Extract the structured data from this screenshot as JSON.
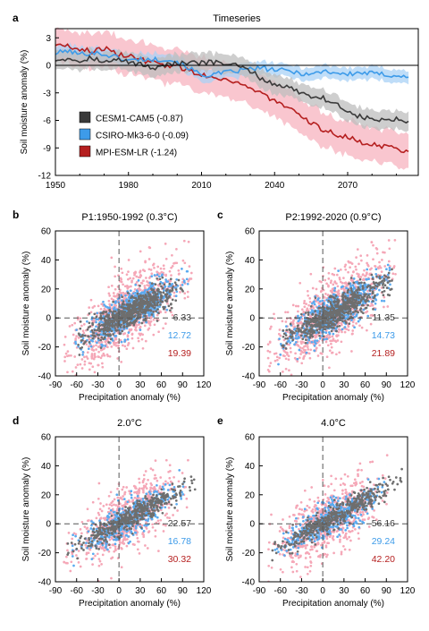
{
  "colors": {
    "cesm": "#3a3a3a",
    "cesm_band": "#bdbdbd",
    "csiro": "#3d9be9",
    "csiro_band": "#a9d1f5",
    "mpi": "#b51f1f",
    "mpi_band": "#f7b3bf",
    "scatter_gray": "#6e6e6e",
    "scatter_blue": "#5aaaf0",
    "scatter_pink": "#f5a7b7"
  },
  "chart_data": [
    {
      "panel": "a",
      "type": "line",
      "title": "Timeseries",
      "xlabel": "",
      "ylabel": "Soil moisture anomaly (%)",
      "xlim": [
        1950,
        2099
      ],
      "ylim": [
        -12,
        4
      ],
      "xticks": [
        "1950",
        "1980",
        "2010",
        "2040",
        "2070"
      ],
      "yticks": [
        "3",
        "0",
        "-3",
        "-6",
        "-9",
        "-12"
      ],
      "grid": false,
      "legend_position": "bottom-left",
      "series": [
        {
          "name": "CESM1-CAM5 (-0.87)",
          "color_key": "cesm",
          "x": [
            1950,
            1955,
            1960,
            1965,
            1970,
            1975,
            1980,
            1985,
            1990,
            1995,
            2000,
            2005,
            2010,
            2015,
            2020,
            2025,
            2030,
            2035,
            2040,
            2045,
            2050,
            2055,
            2060,
            2065,
            2070,
            2075,
            2080,
            2085,
            2090,
            2095
          ],
          "y": [
            0.6,
            0.8,
            0.5,
            0.9,
            0.3,
            0.6,
            0.4,
            0.1,
            -0.3,
            0.1,
            0.2,
            0.2,
            0.3,
            0.3,
            0.2,
            -0.1,
            -0.6,
            -1.5,
            -2.1,
            -2.3,
            -2.9,
            -3.3,
            -3.6,
            -4.2,
            -5.0,
            -5.6,
            -5.9,
            -6.0,
            -5.9,
            -6.1
          ],
          "spread": 1.0
        },
        {
          "name": "CSIRO-Mk3-6-0 (-0.09)",
          "color_key": "csiro",
          "x": [
            1950,
            1955,
            1960,
            1965,
            1970,
            1975,
            1980,
            1985,
            1990,
            1995,
            2000,
            2005,
            2010,
            2015,
            2020,
            2025,
            2030,
            2035,
            2040,
            2045,
            2050,
            2055,
            2060,
            2065,
            2070,
            2075,
            2080,
            2085,
            2090,
            2095
          ],
          "y": [
            1.3,
            1.6,
            1.2,
            1.4,
            1.2,
            0.9,
            0.5,
            0.7,
            0.6,
            0.7,
            0.4,
            -0.3,
            -1.1,
            -1.0,
            -0.8,
            -0.6,
            -0.4,
            -0.3,
            -0.5,
            -0.6,
            -0.8,
            -1.0,
            -0.6,
            -0.8,
            -1.0,
            -0.8,
            -0.9,
            -1.0,
            -1.1,
            -1.3
          ],
          "spread": 0.7
        },
        {
          "name": "MPI-ESM-LR (-1.24)",
          "color_key": "mpi",
          "x": [
            1950,
            1955,
            1960,
            1965,
            1970,
            1975,
            1980,
            1985,
            1990,
            1995,
            2000,
            2005,
            2010,
            2015,
            2020,
            2025,
            2030,
            2035,
            2040,
            2045,
            2050,
            2055,
            2060,
            2065,
            2070,
            2075,
            2080,
            2085,
            2090,
            2095
          ],
          "y": [
            2.3,
            2.1,
            1.8,
            1.5,
            1.9,
            1.2,
            1.1,
            0.6,
            0.3,
            0.0,
            -0.1,
            -0.6,
            -1.0,
            -1.3,
            -1.5,
            -1.9,
            -2.5,
            -3.1,
            -3.9,
            -4.6,
            -5.5,
            -6.3,
            -7.0,
            -7.5,
            -7.8,
            -8.4,
            -8.6,
            -8.8,
            -9.1,
            -9.4
          ],
          "spread": 1.9
        }
      ]
    },
    {
      "panel": "b",
      "type": "scatter",
      "title": "P1:1950-1992 (0.3°C)",
      "xlabel": "Precipitation anomaly (%)",
      "ylabel": "Soil moisture anomaly (%)",
      "xlim": [
        -90,
        120
      ],
      "ylim": [
        -40,
        60
      ],
      "xticks": [
        "-90",
        "-60",
        "-30",
        "0",
        "30",
        "60",
        "90",
        "120"
      ],
      "yticks": [
        "60",
        "40",
        "20",
        "0",
        "-20",
        "-40"
      ],
      "series": [
        {
          "color_key": "scatter_pink",
          "slope": 0.32,
          "intercept": 0,
          "x_range": [
            -75,
            100
          ],
          "spread": 12,
          "count": 900
        },
        {
          "color_key": "scatter_blue",
          "slope": 0.27,
          "intercept": 0,
          "x_range": [
            -60,
            95
          ],
          "spread": 7,
          "count": 550
        },
        {
          "color_key": "scatter_gray",
          "slope": 0.25,
          "intercept": 0,
          "x_range": [
            -55,
            90
          ],
          "spread": 5,
          "count": 650
        }
      ],
      "annotations": [
        {
          "text": "6.33",
          "color_key": "cesm"
        },
        {
          "text": "12.72",
          "color_key": "csiro"
        },
        {
          "text": "19.39",
          "color_key": "mpi"
        }
      ]
    },
    {
      "panel": "c",
      "type": "scatter",
      "title": "P2:1992-2020 (0.9°C)",
      "xlabel": "Precipitation anomaly (%)",
      "ylabel": "Soil moisture anomaly (%)",
      "xlim": [
        -90,
        120
      ],
      "ylim": [
        -40,
        60
      ],
      "xticks": [
        "-90",
        "-60",
        "-30",
        "0",
        "30",
        "60",
        "90",
        "120"
      ],
      "yticks": [
        "60",
        "40",
        "20",
        "0",
        "-20",
        "-40"
      ],
      "series": [
        {
          "color_key": "scatter_pink",
          "slope": 0.33,
          "intercept": 0,
          "x_range": [
            -75,
            100
          ],
          "spread": 12,
          "count": 900
        },
        {
          "color_key": "scatter_blue",
          "slope": 0.28,
          "intercept": 0,
          "x_range": [
            -60,
            95
          ],
          "spread": 7,
          "count": 550
        },
        {
          "color_key": "scatter_gray",
          "slope": 0.26,
          "intercept": 0,
          "x_range": [
            -55,
            95
          ],
          "spread": 5,
          "count": 650
        }
      ],
      "annotations": [
        {
          "text": "11.35",
          "color_key": "cesm"
        },
        {
          "text": "14.73",
          "color_key": "csiro"
        },
        {
          "text": "21.89",
          "color_key": "mpi"
        }
      ]
    },
    {
      "panel": "d",
      "type": "scatter",
      "title": "2.0°C",
      "xlabel": "Precipitation anomaly (%)",
      "ylabel": "Soil moisture anomaly (%)",
      "xlim": [
        -90,
        120
      ],
      "ylim": [
        -40,
        60
      ],
      "xticks": [
        "-90",
        "-60",
        "-30",
        "0",
        "30",
        "60",
        "90",
        "120"
      ],
      "yticks": [
        "60",
        "40",
        "20",
        "0",
        "-20",
        "-40"
      ],
      "series": [
        {
          "color_key": "scatter_pink",
          "slope": 0.3,
          "intercept": 0,
          "x_range": [
            -75,
            95
          ],
          "spread": 11,
          "count": 650
        },
        {
          "color_key": "scatter_blue",
          "slope": 0.26,
          "intercept": 0,
          "x_range": [
            -65,
            90
          ],
          "spread": 6,
          "count": 400
        },
        {
          "color_key": "scatter_gray",
          "slope": 0.27,
          "intercept": 0,
          "x_range": [
            -70,
            105
          ],
          "spread": 4,
          "count": 450
        }
      ],
      "annotations": [
        {
          "text": "22.57",
          "color_key": "cesm"
        },
        {
          "text": "16.78",
          "color_key": "csiro"
        },
        {
          "text": "30.32",
          "color_key": "mpi"
        }
      ]
    },
    {
      "panel": "e",
      "type": "scatter",
      "title": "4.0°C",
      "xlabel": "Precipitation anomaly (%)",
      "ylabel": "Soil moisture anomaly (%)",
      "xlim": [
        -90,
        120
      ],
      "ylim": [
        -40,
        60
      ],
      "xticks": [
        "-90",
        "-60",
        "-30",
        "0",
        "30",
        "60",
        "90",
        "120"
      ],
      "yticks": [
        "60",
        "40",
        "20",
        "0",
        "-20",
        "-40"
      ],
      "series": [
        {
          "color_key": "scatter_pink",
          "slope": 0.3,
          "intercept": 0,
          "x_range": [
            -75,
            90
          ],
          "spread": 11,
          "count": 650
        },
        {
          "color_key": "scatter_blue",
          "slope": 0.26,
          "intercept": 0,
          "x_range": [
            -65,
            85
          ],
          "spread": 6,
          "count": 400
        },
        {
          "color_key": "scatter_gray",
          "slope": 0.28,
          "intercept": 0,
          "x_range": [
            -70,
            110
          ],
          "spread": 4,
          "count": 450
        }
      ],
      "annotations": [
        {
          "text": "56.16",
          "color_key": "cesm"
        },
        {
          "text": "29.24",
          "color_key": "csiro"
        },
        {
          "text": "42.20",
          "color_key": "mpi"
        }
      ]
    }
  ]
}
